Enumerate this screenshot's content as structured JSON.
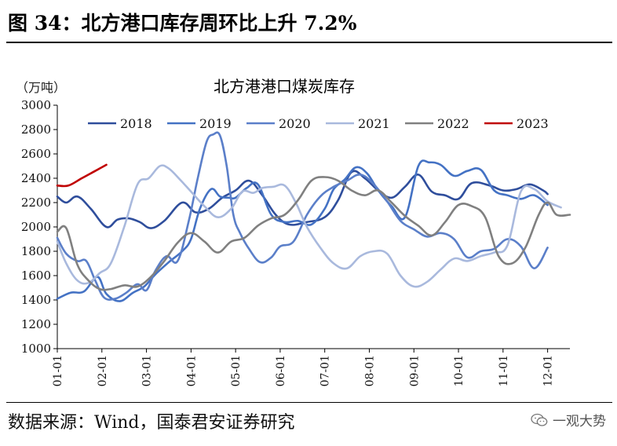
{
  "figure": {
    "title": "图 34：北方港口库存周环比上升 7.2%",
    "source": "数据来源：Wind，国泰君安证券研究",
    "watermark": "一观大势"
  },
  "chart_data": {
    "type": "line",
    "title": "北方港港口煤炭库存",
    "ylabel": "（万吨）",
    "xlabel": "",
    "ylim": [
      1000,
      3000
    ],
    "yticks": [
      1000,
      1200,
      1400,
      1600,
      1800,
      2000,
      2200,
      2400,
      2600,
      2800,
      3000
    ],
    "xlim": [
      1,
      12.5
    ],
    "x_tick_labels": [
      "01-01",
      "02-01",
      "03-01",
      "04-01",
      "05-01",
      "06-01",
      "07-01",
      "08-01",
      "09-01",
      "10-01",
      "11-01",
      "12-01"
    ],
    "x_tick_positions": [
      1,
      2,
      3,
      4,
      5,
      6,
      7,
      8,
      9,
      10,
      11,
      12
    ],
    "legend_position": "top",
    "series": [
      {
        "name": "2018",
        "color": "#2F4E9C",
        "x": [
          1.0,
          1.2,
          1.45,
          1.75,
          2.1,
          2.35,
          2.6,
          2.85,
          3.1,
          3.4,
          3.8,
          4.1,
          4.4,
          4.7,
          5.0,
          5.3,
          5.6,
          5.9,
          6.2,
          6.6,
          7.0,
          7.3,
          7.6,
          7.9,
          8.2,
          8.5,
          8.8,
          9.1,
          9.4,
          9.7,
          10.0,
          10.3,
          10.7,
          11.0,
          11.3,
          11.6,
          11.9,
          12.0
        ],
        "y": [
          2250,
          2200,
          2250,
          2150,
          2000,
          2060,
          2070,
          2040,
          1990,
          2050,
          2200,
          2120,
          2150,
          2240,
          2300,
          2380,
          2260,
          2100,
          2020,
          2040,
          2080,
          2220,
          2450,
          2400,
          2300,
          2240,
          2330,
          2430,
          2290,
          2260,
          2230,
          2360,
          2340,
          2300,
          2310,
          2350,
          2300,
          2270
        ]
      },
      {
        "name": "2019",
        "color": "#4472C4",
        "x": [
          1.0,
          1.3,
          1.6,
          1.9,
          2.1,
          2.4,
          2.7,
          2.95,
          3.2,
          3.5,
          3.8,
          4.0,
          4.2,
          4.45,
          4.65,
          4.85,
          5.0,
          5.25,
          5.5,
          5.8,
          6.1,
          6.4,
          6.7,
          7.0,
          7.2,
          7.45,
          7.7,
          7.95,
          8.2,
          8.5,
          8.8,
          9.1,
          9.35,
          9.6,
          9.9,
          10.2,
          10.5,
          10.8,
          11.1,
          11.4,
          11.7,
          12.0
        ],
        "y": [
          1410,
          1460,
          1470,
          1590,
          1450,
          1390,
          1460,
          1510,
          1610,
          1710,
          1800,
          1900,
          2150,
          2310,
          2250,
          2240,
          2240,
          2320,
          2350,
          2100,
          2040,
          2050,
          2020,
          2150,
          2310,
          2390,
          2490,
          2440,
          2300,
          2170,
          2080,
          2500,
          2530,
          2510,
          2420,
          2460,
          2470,
          2300,
          2260,
          2230,
          2260,
          2180
        ]
      },
      {
        "name": "2020",
        "color": "#5B7FC9",
        "x": [
          1.0,
          1.2,
          1.45,
          1.65,
          1.85,
          2.05,
          2.3,
          2.55,
          2.8,
          3.0,
          3.2,
          3.45,
          3.7,
          3.95,
          4.15,
          4.35,
          4.5,
          4.65,
          4.8,
          4.95,
          5.1,
          5.3,
          5.55,
          5.8,
          6.0,
          6.3,
          6.6,
          6.9,
          7.2,
          7.5,
          7.8,
          8.1,
          8.4,
          8.7,
          9.0,
          9.3,
          9.6,
          9.9,
          10.2,
          10.5,
          10.8,
          11.1,
          11.4,
          11.7,
          12.0
        ],
        "y": [
          1910,
          1780,
          1720,
          1720,
          1560,
          1420,
          1410,
          1460,
          1530,
          1480,
          1640,
          1760,
          1720,
          2050,
          2400,
          2700,
          2760,
          2750,
          2500,
          2100,
          1950,
          1820,
          1710,
          1750,
          1840,
          1880,
          2100,
          2250,
          2330,
          2380,
          2430,
          2350,
          2210,
          2050,
          1980,
          1920,
          1950,
          1900,
          1750,
          1800,
          1820,
          1900,
          1840,
          1660,
          1830
        ]
      },
      {
        "name": "2021",
        "color": "#A9B9DD",
        "x": [
          1.0,
          1.2,
          1.45,
          1.7,
          1.95,
          2.2,
          2.5,
          2.8,
          3.05,
          3.3,
          3.5,
          3.75,
          4.0,
          4.3,
          4.6,
          4.9,
          5.15,
          5.4,
          5.6,
          5.85,
          6.1,
          6.35,
          6.6,
          6.9,
          7.2,
          7.5,
          7.8,
          8.1,
          8.4,
          8.7,
          9.0,
          9.3,
          9.6,
          9.9,
          10.2,
          10.5,
          10.8,
          11.1,
          11.4,
          11.7,
          12.0,
          12.3
        ],
        "y": [
          1880,
          1700,
          1560,
          1540,
          1620,
          1700,
          2000,
          2350,
          2400,
          2500,
          2480,
          2390,
          2290,
          2170,
          2080,
          2150,
          2290,
          2280,
          2320,
          2330,
          2340,
          2200,
          2000,
          1830,
          1700,
          1660,
          1760,
          1800,
          1780,
          1600,
          1510,
          1550,
          1650,
          1740,
          1720,
          1760,
          1790,
          1850,
          2290,
          2310,
          2210,
          2160
        ]
      },
      {
        "name": "2022",
        "color": "#808080",
        "x": [
          1.0,
          1.2,
          1.45,
          1.7,
          1.95,
          2.2,
          2.5,
          2.8,
          3.1,
          3.4,
          3.7,
          4.0,
          4.3,
          4.6,
          4.9,
          5.2,
          5.5,
          5.8,
          6.1,
          6.4,
          6.7,
          7.0,
          7.3,
          7.6,
          7.9,
          8.2,
          8.5,
          8.8,
          9.1,
          9.4,
          9.7,
          10.0,
          10.3,
          10.6,
          10.9,
          11.2,
          11.5,
          11.8,
          12.0,
          12.2,
          12.5
        ],
        "y": [
          1960,
          1990,
          1690,
          1560,
          1490,
          1490,
          1520,
          1510,
          1590,
          1720,
          1870,
          1950,
          1880,
          1790,
          1880,
          1910,
          2010,
          2070,
          2100,
          2220,
          2380,
          2410,
          2380,
          2300,
          2260,
          2300,
          2200,
          2090,
          2010,
          1930,
          2040,
          2180,
          2170,
          2080,
          1760,
          1700,
          1830,
          2100,
          2200,
          2100,
          2100
        ]
      },
      {
        "name": "2023",
        "color": "#C00000",
        "x": [
          1.0,
          1.25,
          1.55,
          1.85,
          2.1
        ],
        "y": [
          2340,
          2340,
          2400,
          2460,
          2510
        ]
      }
    ]
  }
}
